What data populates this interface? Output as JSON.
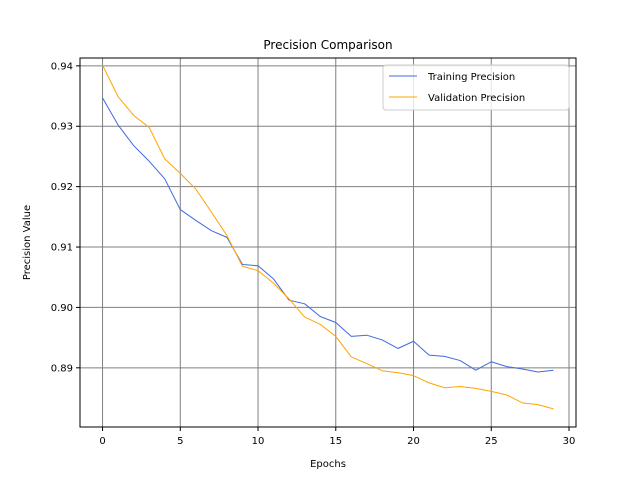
{
  "chart_data": {
    "type": "line",
    "title": "Precision Comparison",
    "xlabel": "Epochs",
    "ylabel": "Precision Value",
    "xlim": [
      -1.45,
      30.45
    ],
    "ylim": [
      0.8802,
      0.9413
    ],
    "xticks": [
      0,
      5,
      10,
      15,
      20,
      25,
      30
    ],
    "xtick_labels": [
      "0",
      "5",
      "10",
      "15",
      "20",
      "25",
      "30"
    ],
    "yticks": [
      0.89,
      0.9,
      0.91,
      0.92,
      0.93,
      0.94
    ],
    "ytick_labels": [
      "0.89",
      "0.90",
      "0.91",
      "0.92",
      "0.93",
      "0.94"
    ],
    "grid": true,
    "legend_position": "top-right",
    "x": [
      0,
      1,
      2,
      3,
      4,
      5,
      6,
      7,
      8,
      9,
      10,
      11,
      12,
      13,
      14,
      15,
      16,
      17,
      18,
      19,
      20,
      21,
      22,
      23,
      24,
      25,
      26,
      27,
      28,
      29
    ],
    "series": [
      {
        "name": "Training Precision",
        "color": "#4169e1",
        "values": [
          0.9347,
          0.9302,
          0.9268,
          0.9242,
          0.9213,
          0.9162,
          0.9144,
          0.9127,
          0.9116,
          0.9071,
          0.9069,
          0.9047,
          0.9012,
          0.9006,
          0.8985,
          0.8975,
          0.8952,
          0.8954,
          0.8946,
          0.8932,
          0.8944,
          0.8921,
          0.8919,
          0.8912,
          0.8896,
          0.891,
          0.8902,
          0.8898,
          0.8893,
          0.8896
        ]
      },
      {
        "name": "Validation Precision",
        "color": "#ffa500",
        "values": [
          0.9401,
          0.9349,
          0.9318,
          0.9298,
          0.9246,
          0.9222,
          0.9196,
          0.9158,
          0.9119,
          0.9068,
          0.9061,
          0.904,
          0.9014,
          0.8984,
          0.8972,
          0.8952,
          0.8918,
          0.8907,
          0.8895,
          0.8892,
          0.8887,
          0.8875,
          0.8867,
          0.8869,
          0.8866,
          0.8861,
          0.8855,
          0.8842,
          0.8839,
          0.8832
        ]
      }
    ]
  }
}
